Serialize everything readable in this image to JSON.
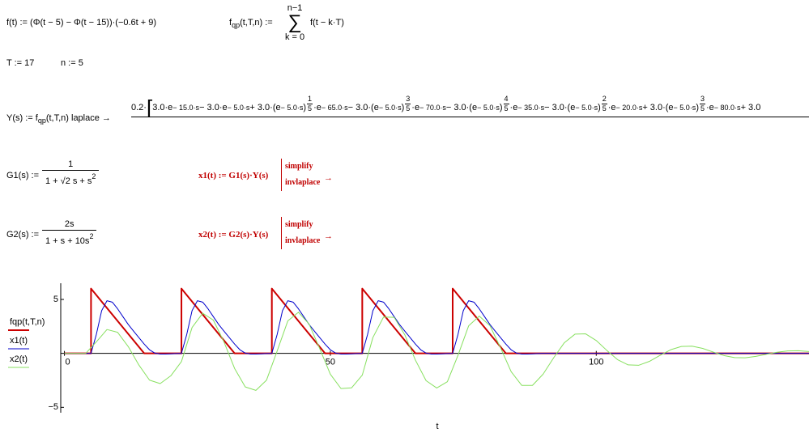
{
  "worksheet": {
    "f_def": [
      {
        "text": "f(t) := (Φ(t − 5) − Φ(t − 15))·(−0.6t + 9)"
      }
    ],
    "fqp_lhs": [
      {
        "text": "f"
      },
      {
        "sub": "qp"
      },
      {
        "text": "(t,T,n) :="
      }
    ],
    "sum": {
      "top": "n−1",
      "sign": "∑",
      "bottom": "k = 0"
    },
    "fqp_body": [
      {
        "text": "f(t − k·T)"
      }
    ],
    "T_def": [
      {
        "text": "T := 17"
      }
    ],
    "n_def": [
      {
        "text": "n := 5"
      }
    ],
    "Y_lhs": [
      {
        "text": "Y(s) := f"
      },
      {
        "sub": "qp"
      },
      {
        "text": "(t,T,n) laplace  →"
      }
    ],
    "Y_rhs": [
      {
        "text": "0.2·"
      },
      {
        "bracket": "["
      },
      {
        "text": "3.0·e"
      },
      {
        "sup": "− 15.0·s"
      },
      {
        "text": " − 3.0·e"
      },
      {
        "sup": "− 5.0·s"
      },
      {
        "text": " + 3.0·(e"
      },
      {
        "sup": "− 5.0·s"
      },
      {
        "text": ")"
      },
      {
        "num": "1",
        "den": "5"
      },
      {
        "text": "·e"
      },
      {
        "sup": "− 65.0·s"
      },
      {
        "text": " − 3.0·(e"
      },
      {
        "sup": "− 5.0·s"
      },
      {
        "text": ")"
      },
      {
        "num": "3",
        "den": "5"
      },
      {
        "text": "·e"
      },
      {
        "sup": "− 70.0·s"
      },
      {
        "text": " − 3.0·(e"
      },
      {
        "sup": "− 5.0·s"
      },
      {
        "text": ")"
      },
      {
        "num": "4",
        "den": "5"
      },
      {
        "text": "·e"
      },
      {
        "sup": "− 35.0·s"
      },
      {
        "text": " − 3.0·(e"
      },
      {
        "sup": "− 5.0·s"
      },
      {
        "text": ")"
      },
      {
        "num": "2",
        "den": "5"
      },
      {
        "text": "·e"
      },
      {
        "sup": "− 20.0·s"
      },
      {
        "text": " + 3.0·(e"
      },
      {
        "sup": "− 5.0·s"
      },
      {
        "text": ")"
      },
      {
        "num": "3",
        "den": "5"
      },
      {
        "text": "·e"
      },
      {
        "sup": "− 80.0·s"
      },
      {
        "text": " + 3.0"
      }
    ],
    "G1": {
      "lhs": [
        {
          "text": "G1(s) :="
        }
      ],
      "num": [
        {
          "text": "1"
        }
      ],
      "den": [
        {
          "text": "1 + √2 s + s"
        },
        {
          "sup": "2"
        }
      ]
    },
    "x1": {
      "lhs": [
        {
          "text": "x1(t) := G1(s)·Y(s)"
        }
      ],
      "ops": [
        "simplify",
        "invlaplace"
      ],
      "arrow": "→"
    },
    "G2": {
      "lhs": [
        {
          "text": "G2(s) :="
        }
      ],
      "num": [
        {
          "text": "2s"
        }
      ],
      "den": [
        {
          "text": "1 + s + 10s"
        },
        {
          "sup": "2"
        }
      ]
    },
    "x2": {
      "lhs": [
        {
          "text": "x2(t) := G2(s)·Y(s)"
        }
      ],
      "ops": [
        "simplify",
        "invlaplace"
      ],
      "arrow": "→"
    }
  },
  "chart_data": {
    "type": "line",
    "xlabel": "t",
    "legend": "left",
    "grid": false,
    "xlim": [
      -1,
      140
    ],
    "ylim": [
      -5.5,
      6.5
    ],
    "xticks": [
      0,
      50,
      100
    ],
    "yticks": [
      5,
      {
        "value": -5,
        "label": "−5"
      }
    ],
    "series": [
      {
        "name": "fqp(t,T,n)",
        "color": "#cc0000",
        "width": 2,
        "x": [
          0,
          5,
          5,
          15,
          22,
          22,
          32,
          39,
          39,
          49,
          56,
          56,
          66,
          73,
          73,
          83,
          140
        ],
        "values": [
          0,
          0,
          6,
          0,
          0,
          6,
          0,
          0,
          6,
          0,
          0,
          6,
          0,
          0,
          6,
          0,
          0
        ]
      },
      {
        "name": "x1(t)",
        "color": "#0000cc",
        "width": 1,
        "x": [
          0,
          1,
          2,
          3,
          4,
          5,
          6,
          7,
          8,
          9,
          10,
          11,
          12,
          13,
          14,
          15,
          16,
          17,
          18,
          19,
          20,
          21,
          22,
          23,
          24,
          25,
          26,
          27,
          28,
          29,
          30,
          31,
          32,
          33,
          34,
          35,
          36,
          37,
          38,
          39,
          40,
          41,
          42,
          43,
          44,
          45,
          46,
          47,
          48,
          49,
          50,
          51,
          52,
          53,
          54,
          55,
          56,
          57,
          58,
          59,
          60,
          61,
          62,
          63,
          64,
          65,
          66,
          67,
          68,
          69,
          70,
          71,
          72,
          73,
          74,
          75,
          76,
          77,
          78,
          79,
          80,
          81,
          82,
          83,
          84,
          85,
          86,
          87,
          88,
          89,
          90,
          91,
          92,
          93,
          94,
          95,
          96,
          97,
          98,
          99,
          100,
          140
        ],
        "values": [
          0,
          0,
          0,
          0,
          0,
          0,
          1.76,
          3.96,
          4.88,
          4.75,
          4.13,
          3.4,
          2.68,
          2.06,
          1.46,
          0.86,
          0.33,
          0.03,
          -0.06,
          -0.06,
          -0.04,
          -0.02,
          0,
          1.76,
          3.96,
          4.88,
          4.75,
          4.13,
          3.4,
          2.68,
          2.06,
          1.46,
          0.86,
          0.33,
          0.03,
          -0.06,
          -0.06,
          -0.04,
          -0.02,
          0,
          1.76,
          3.96,
          4.88,
          4.75,
          4.13,
          3.4,
          2.68,
          2.06,
          1.46,
          0.86,
          0.33,
          0.03,
          -0.06,
          -0.06,
          -0.04,
          -0.02,
          0,
          1.76,
          3.96,
          4.88,
          4.75,
          4.13,
          3.4,
          2.68,
          2.06,
          1.46,
          0.86,
          0.33,
          0.03,
          -0.06,
          -0.06,
          -0.04,
          -0.02,
          0,
          1.76,
          3.96,
          4.88,
          4.75,
          4.13,
          3.4,
          2.68,
          2.06,
          1.46,
          0.86,
          0.33,
          0.03,
          -0.06,
          -0.06,
          -0.04,
          -0.02,
          0,
          0,
          0,
          0,
          0,
          0,
          0,
          0,
          0,
          0,
          0,
          0
        ]
      },
      {
        "name": "x2(t)",
        "color": "#88e060",
        "width": 1,
        "x": [
          0,
          2,
          4,
          6,
          8,
          10,
          12,
          14,
          16,
          18,
          20,
          22,
          24,
          26,
          28,
          30,
          32,
          34,
          36,
          38,
          40,
          42,
          44,
          46,
          48,
          50,
          52,
          54,
          56,
          58,
          60,
          62,
          64,
          66,
          68,
          70,
          72,
          74,
          76,
          78,
          80,
          82,
          84,
          86,
          88,
          90,
          92,
          94,
          96,
          98,
          100,
          102,
          104,
          106,
          108,
          110,
          112,
          114,
          116,
          118,
          120,
          122,
          124,
          126,
          128,
          130,
          132,
          134,
          136,
          138,
          140
        ],
        "values": [
          0,
          0,
          0,
          1.07,
          2.21,
          1.95,
          0.63,
          -1.08,
          -2.48,
          -2.8,
          -2.08,
          -0.76,
          2.4,
          3.72,
          3.08,
          1.06,
          -1.4,
          -3.11,
          -3.43,
          -2.48,
          0.22,
          3.01,
          3.81,
          2.72,
          0.44,
          -1.93,
          -3.26,
          -3.19,
          -2.02,
          1.47,
          3.37,
          3.34,
          1.72,
          -0.63,
          -2.53,
          -3.21,
          -2.63,
          -0.18,
          2.55,
          3.45,
          2.57,
          0.52,
          -1.7,
          -2.97,
          -2.97,
          -1.93,
          -0.4,
          0.99,
          1.78,
          1.81,
          1.19,
          0.27,
          -0.58,
          -1.07,
          -1.1,
          -0.74,
          -0.18,
          0.34,
          0.64,
          0.67,
          0.46,
          0.12,
          -0.2,
          -0.39,
          -0.41,
          -0.28,
          -0.08,
          0.11,
          0.23,
          0.25,
          0.17
        ]
      }
    ]
  }
}
